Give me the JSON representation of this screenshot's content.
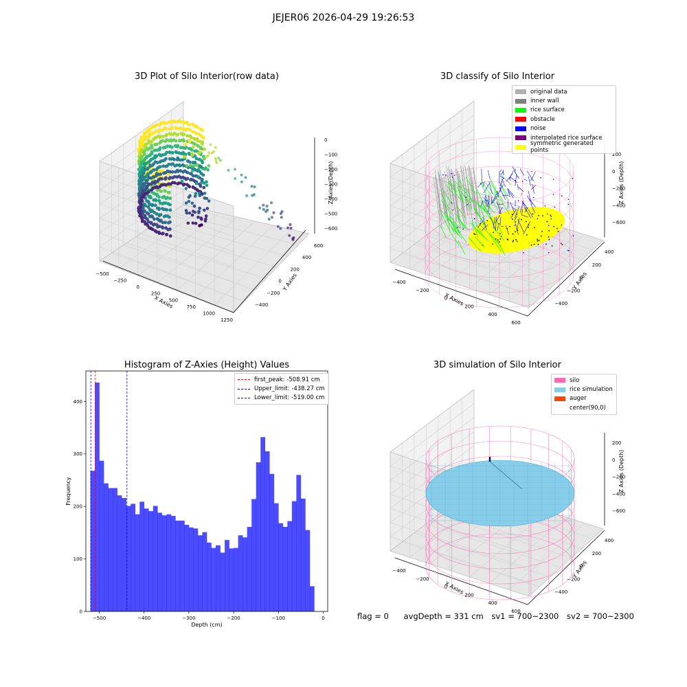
{
  "suptitle": "JEJER06 2026-04-29 19:26:53",
  "panels": {
    "raw": {
      "title": "3D Plot of Silo Interior(row data)",
      "xlabel": "X Axies",
      "ylabel": "Y Axies",
      "zlabel": "Z Axies (Depth)",
      "xticks": [
        "−500",
        "−250",
        "0",
        "250",
        "500",
        "750",
        "1000",
        "1250"
      ],
      "yticks": [
        "600",
        "400",
        "200",
        "0",
        "−200",
        "−400"
      ],
      "zticks": [
        "0",
        "−100",
        "−200",
        "−300",
        "−400",
        "−500",
        "−600"
      ]
    },
    "classify": {
      "title": "3D classify of Silo Interior",
      "xlabel": "X Axies",
      "ylabel": "Y Axies",
      "zlabel": "Z Axies (Depth)",
      "xticks": [
        "−400",
        "−200",
        "0",
        "200",
        "400",
        "600"
      ],
      "yticks": [
        "400",
        "200",
        "0",
        "−200",
        "−400"
      ],
      "zticks": [
        "200",
        "0",
        "−200",
        "−400",
        "−600"
      ],
      "legend": [
        {
          "label": "original data",
          "color": "#b0b0b0"
        },
        {
          "label": "inner wall",
          "color": "#808080"
        },
        {
          "label": "rice surface",
          "color": "#00ff00"
        },
        {
          "label": "obstacle",
          "color": "#ff0000"
        },
        {
          "label": "noise",
          "color": "#0000ff"
        },
        {
          "label": "interpolated rice surface",
          "color": "#800080"
        },
        {
          "label": "symmetric generated points",
          "color": "#ffff00"
        }
      ]
    },
    "simulation": {
      "title": "3D simulation of Silo Interior",
      "xlabel": "X Axies",
      "ylabel": "Y Axies",
      "zlabel": "Z Axies (Depth)",
      "xticks": [
        "−400",
        "−200",
        "0",
        "200",
        "400",
        "600"
      ],
      "yticks": [
        "400",
        "200",
        "0",
        "−200",
        "−400"
      ],
      "zticks": [
        "200",
        "0",
        "−200",
        "−400",
        "−600"
      ],
      "legend": [
        {
          "label": "silo",
          "color": "#ff69b4"
        },
        {
          "label": "rice simulation",
          "color": "#87ceeb"
        },
        {
          "label": "auger",
          "color": "#ff4500"
        },
        {
          "label": "center(90,0)",
          "color": ""
        }
      ]
    }
  },
  "chart_data": {
    "type": "bar",
    "title": "Histogram of Z-Axies (Height) Values",
    "xlabel": "Depth (cm)",
    "ylabel": "Frequency",
    "xlim": [
      -530,
      10
    ],
    "ylim": [
      0,
      458
    ],
    "xticks": [
      -500,
      -400,
      -300,
      -200,
      -100,
      0
    ],
    "yticks": [
      0,
      100,
      200,
      300,
      400
    ],
    "bin_start": -520,
    "bin_width": 10,
    "bar_color": "#0000ff",
    "values": [
      268,
      436,
      287,
      244,
      235,
      235,
      221,
      216,
      201,
      205,
      185,
      209,
      196,
      191,
      201,
      188,
      183,
      185,
      182,
      173,
      173,
      165,
      160,
      158,
      145,
      151,
      131,
      121,
      126,
      112,
      136,
      120,
      121,
      145,
      141,
      161,
      214,
      284,
      332,
      305,
      262,
      206,
      168,
      161,
      172,
      210,
      260,
      215,
      155,
      48
    ],
    "lines": [
      {
        "label": "first_peak: -508.91 cm",
        "x": -508.91,
        "color": "#ff0000"
      },
      {
        "label": "Upper_limit: -438.27 cm",
        "x": -438.27,
        "color": "#0000ff"
      },
      {
        "label": "Lower_limit: -519.00 cm",
        "x": -519.0,
        "color": "#0000ff"
      }
    ]
  },
  "footer": {
    "flag": "flag = 0",
    "avg": "avgDepth = 331 cm",
    "sv1": "sv1 = 700~2300",
    "sv2": "sv2 = 700~2300"
  }
}
